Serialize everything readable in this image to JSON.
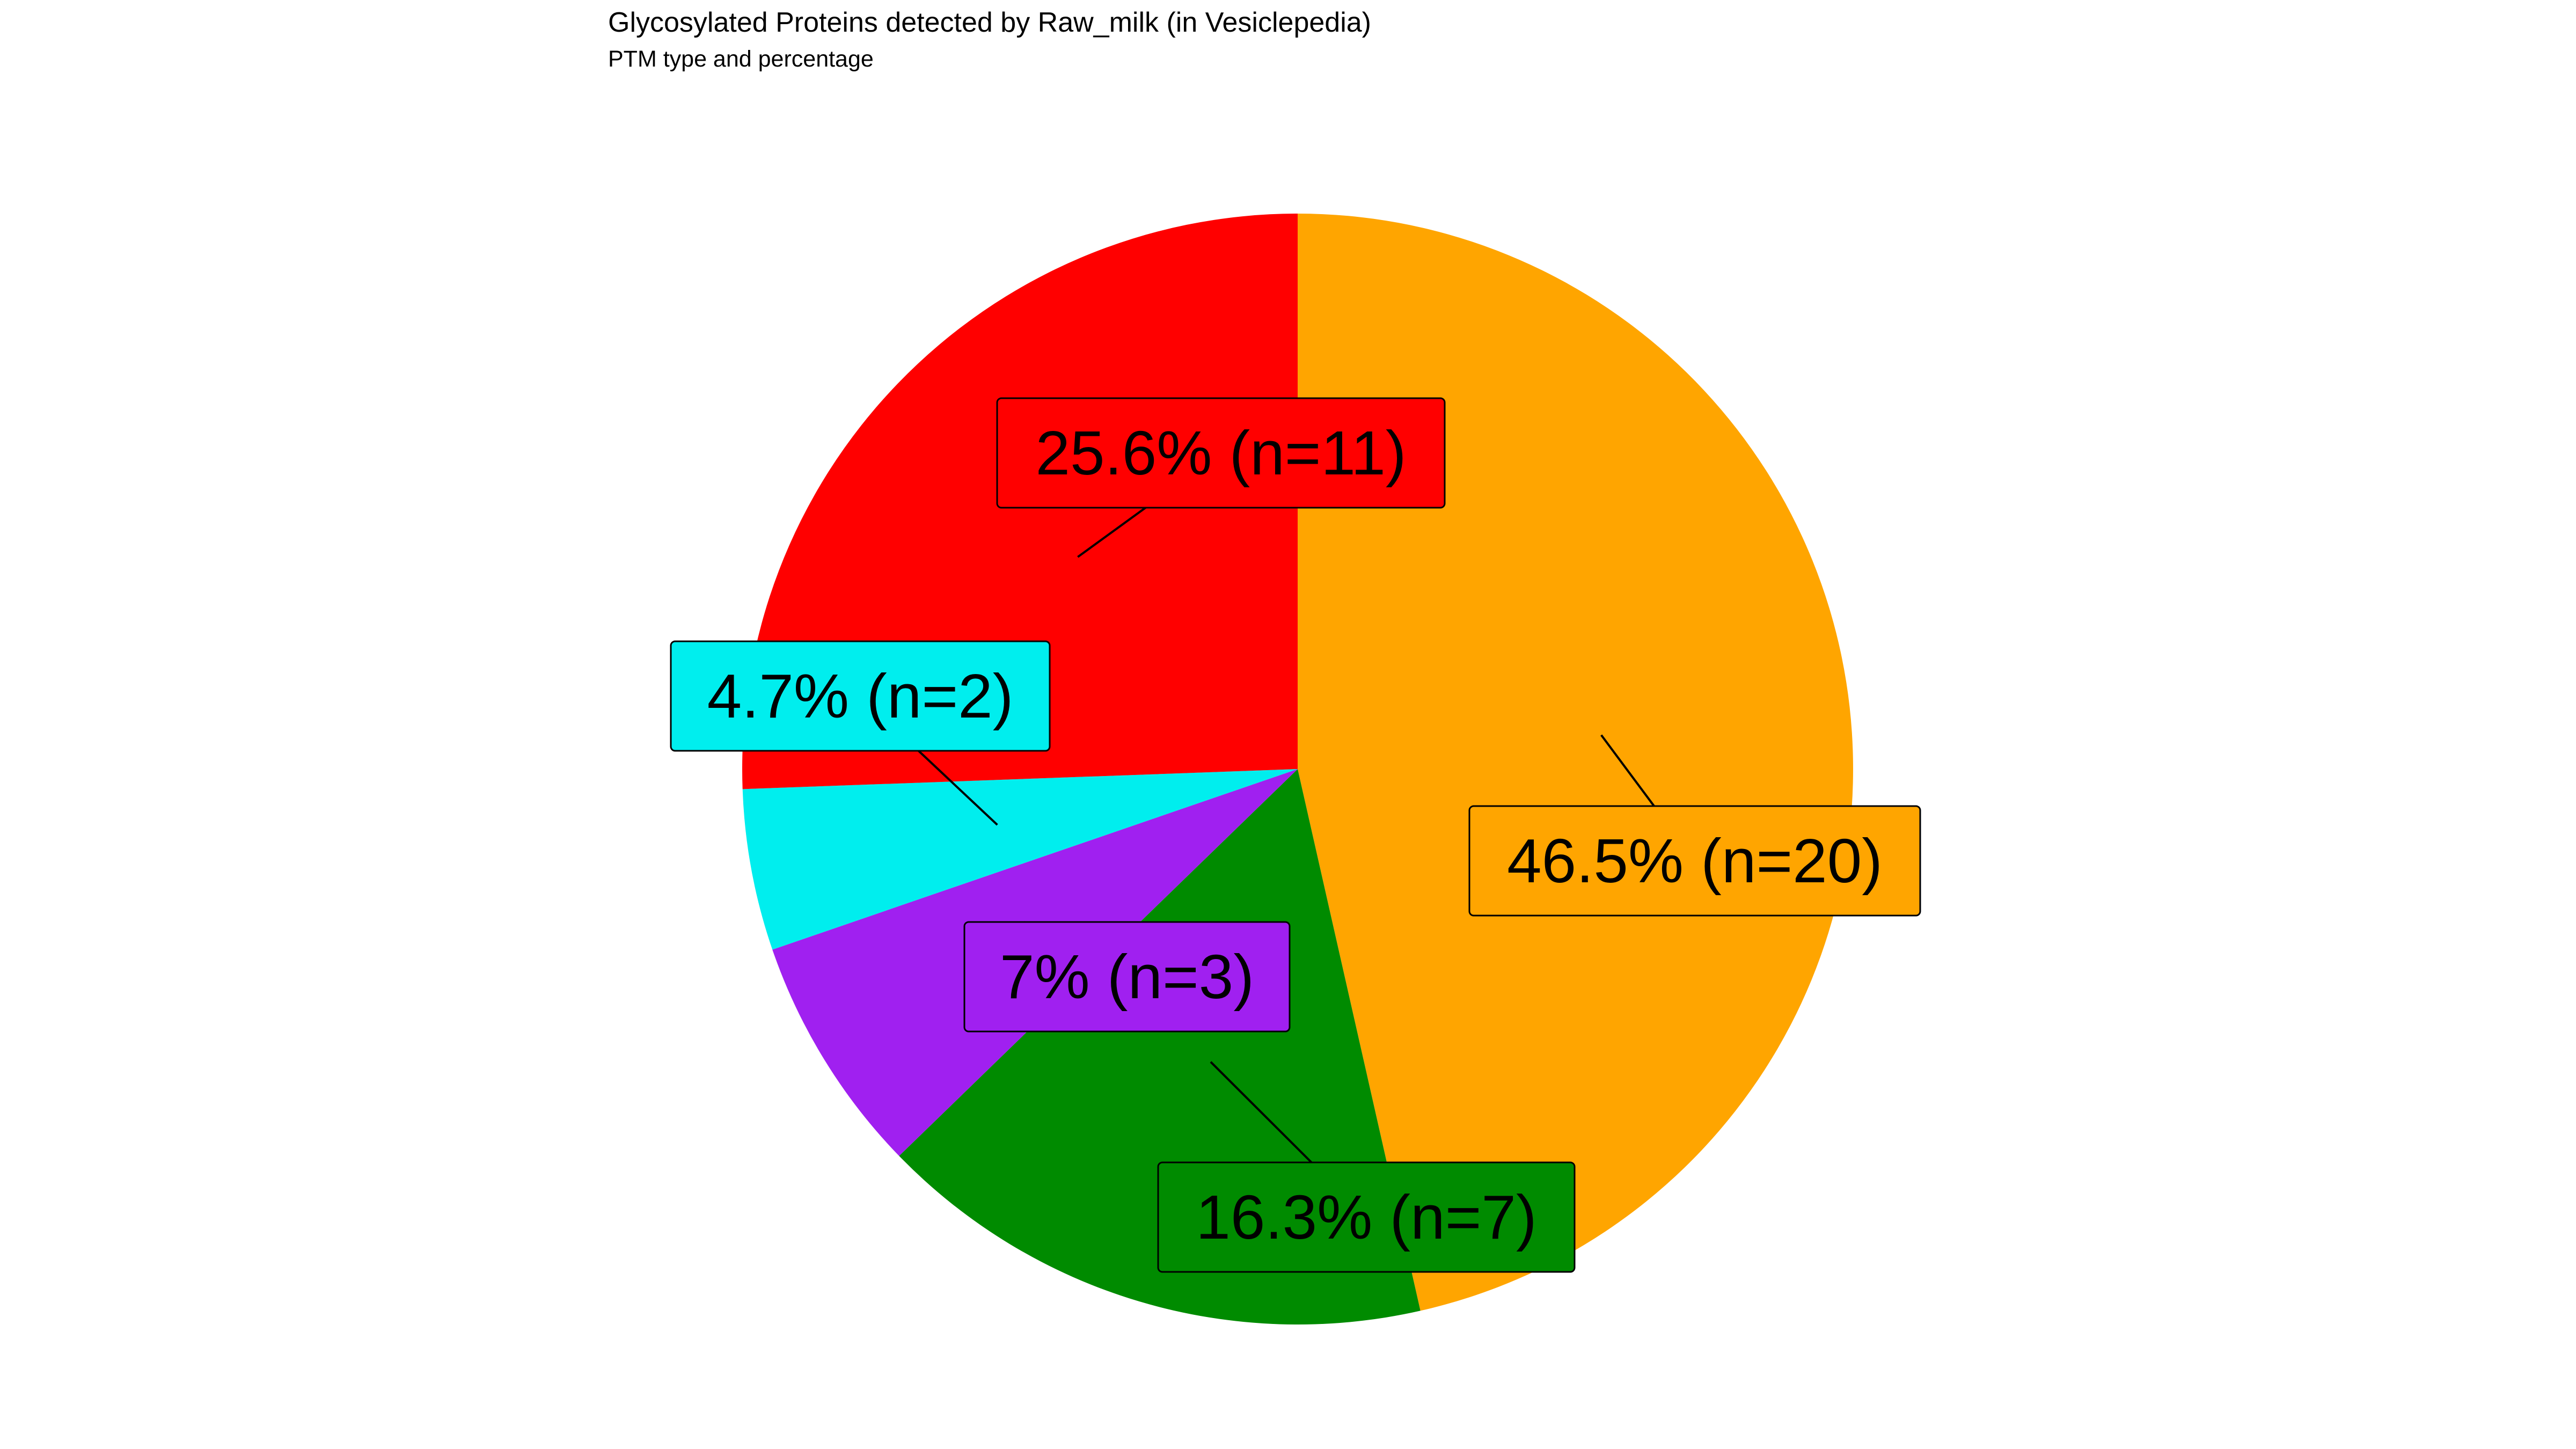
{
  "chart_data": {
    "type": "pie",
    "title": "Glycosylated Proteins detected by Raw_milk (in Vesiclepedia)",
    "subtitle": "PTM type and percentage",
    "start": "12 o'clock",
    "direction": "clockwise",
    "legend": "none",
    "slices": [
      {
        "label": "46.5% (n=20)",
        "percent": 46.5,
        "count": 20,
        "color": "#FFA500"
      },
      {
        "label": "16.3% (n=7)",
        "percent": 16.3,
        "count": 7,
        "color": "#008B00"
      },
      {
        "label": "7% (n=3)",
        "percent": 7.0,
        "count": 3,
        "color": "#A020F0"
      },
      {
        "label": "4.7% (n=2)",
        "percent": 4.7,
        "count": 2,
        "color": "#00EEEE"
      },
      {
        "label": "25.6% (n=11)",
        "percent": 25.6,
        "count": 11,
        "color": "#FF0000"
      }
    ]
  }
}
